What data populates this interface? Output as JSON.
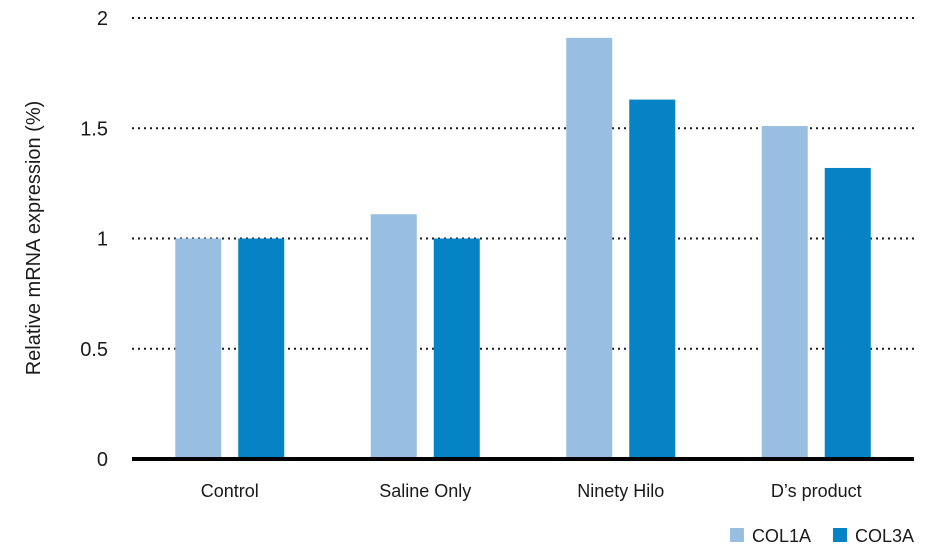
{
  "chart_data": {
    "type": "bar",
    "title": "",
    "xlabel": "",
    "ylabel": "Relative mRNA expression (%)",
    "ylim": [
      0,
      2
    ],
    "yticks": [
      {
        "value": 0,
        "label": "0"
      },
      {
        "value": 0.5,
        "label": "0.5"
      },
      {
        "value": 1,
        "label": "1"
      },
      {
        "value": 1.5,
        "label": "1.5"
      },
      {
        "value": 2,
        "label": "2"
      }
    ],
    "grid": true,
    "legend_position": "bottom-right",
    "categories": [
      "Control",
      "Saline Only",
      "Ninety Hilo",
      "D’s product"
    ],
    "series": [
      {
        "name": "COL1A",
        "color": "#98bfe2",
        "values": [
          1.0,
          1.11,
          1.91,
          1.51
        ]
      },
      {
        "name": "COL3A",
        "color": "#0683c4",
        "values": [
          1.0,
          1.0,
          1.63,
          1.32
        ]
      }
    ]
  }
}
